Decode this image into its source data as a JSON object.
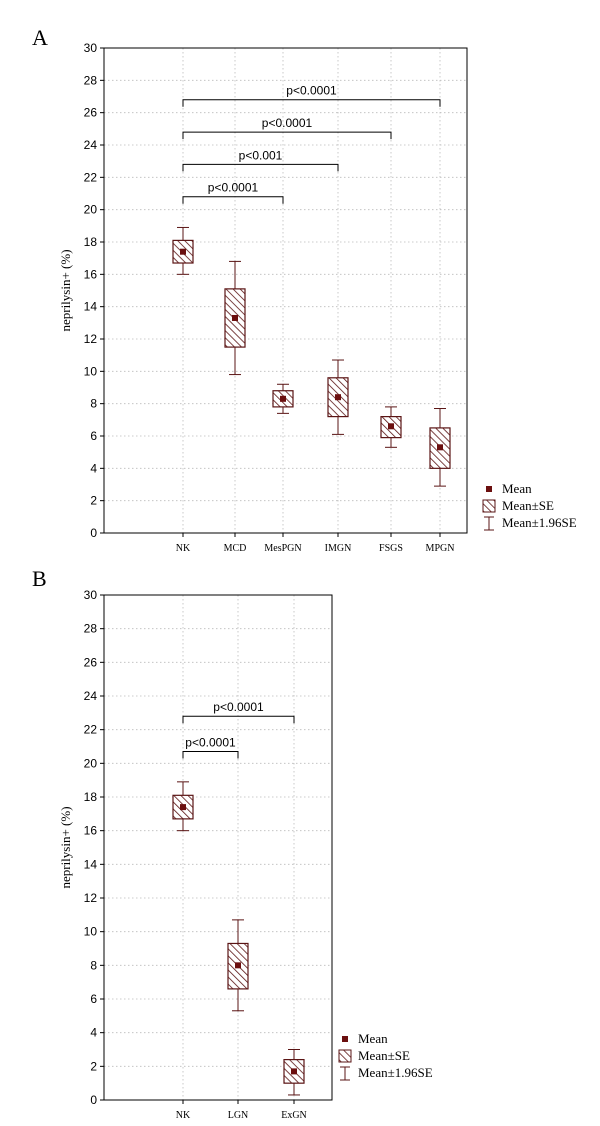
{
  "chart_data": [
    {
      "type": "box",
      "panel": "A",
      "ylabel": "neprilysin+ (%)",
      "ylim": [
        0,
        30
      ],
      "yticks": [
        0,
        2,
        4,
        6,
        8,
        10,
        12,
        14,
        16,
        18,
        20,
        22,
        24,
        26,
        28,
        30
      ],
      "grid": true,
      "categories": [
        "NK",
        "MCD",
        "MesPGN",
        "IMGN",
        "FSGS",
        "MPGN"
      ],
      "mean": [
        17.4,
        13.3,
        8.3,
        8.4,
        6.6,
        5.3
      ],
      "se_low": [
        16.7,
        11.5,
        7.8,
        7.2,
        5.9,
        4.0
      ],
      "se_high": [
        18.1,
        15.1,
        8.8,
        9.6,
        7.2,
        6.5
      ],
      "ci_low": [
        16.0,
        9.8,
        7.4,
        6.1,
        5.3,
        2.9
      ],
      "ci_high": [
        18.9,
        16.8,
        9.2,
        10.7,
        7.8,
        7.7
      ],
      "brackets": [
        {
          "from": 0,
          "to": 5,
          "label": "p<0.0001",
          "y": 26.8
        },
        {
          "from": 0,
          "to": 4,
          "label": "p<0.0001",
          "y": 24.8
        },
        {
          "from": 0,
          "to": 3,
          "label": "p<0.001",
          "y": 22.8
        },
        {
          "from": 0,
          "to": 2,
          "label": "p<0.0001",
          "y": 20.8
        }
      ],
      "legend": [
        "Mean",
        "Mean±SE",
        "Mean±1.96SE"
      ],
      "legend_position": "bottom-right outside"
    },
    {
      "type": "box",
      "panel": "B",
      "ylabel": "neprilysin+ (%)",
      "ylim": [
        0,
        30
      ],
      "yticks": [
        0,
        2,
        4,
        6,
        8,
        10,
        12,
        14,
        16,
        18,
        20,
        22,
        24,
        26,
        28,
        30
      ],
      "grid": true,
      "categories": [
        "NK",
        "LGN",
        "ExGN"
      ],
      "mean": [
        17.4,
        8.0,
        1.7
      ],
      "se_low": [
        16.7,
        6.6,
        1.0
      ],
      "se_high": [
        18.1,
        9.3,
        2.4
      ],
      "ci_low": [
        16.0,
        5.3,
        0.3
      ],
      "ci_high": [
        18.9,
        10.7,
        3.0
      ],
      "brackets": [
        {
          "from": 0,
          "to": 2,
          "label": "p<0.0001",
          "y": 22.8
        },
        {
          "from": 0,
          "to": 1,
          "label": "p<0.0001",
          "y": 20.7
        }
      ],
      "legend": [
        "Mean",
        "Mean±SE",
        "Mean±1.96SE"
      ],
      "legend_position": "bottom-right"
    }
  ],
  "colors": {
    "mean": "#6b0f0f",
    "box_stroke": "#5a1414",
    "hatch": "#5a1414",
    "grid": "#bbbbbb",
    "axis": "#000000"
  }
}
